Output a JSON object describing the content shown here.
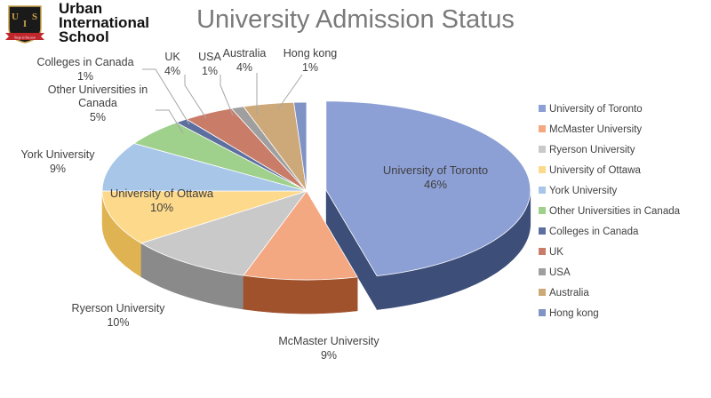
{
  "logo": {
    "mark_letters": [
      "U",
      "I",
      "S"
    ],
    "tagline": "Steps to Success",
    "lines": [
      "Urban",
      "International",
      "School"
    ],
    "colors": {
      "shield": "#1a1a1a",
      "banner": "#c0272d",
      "gold": "#c9a14a"
    }
  },
  "chart_data": {
    "type": "pie",
    "title": "University Admission Status",
    "exploded": "University of Toronto",
    "legend_position": "right",
    "slices": [
      {
        "name": "University of Toronto",
        "value": 46,
        "label": "46%",
        "color": "#8da0d6",
        "dark": "#3d4e78"
      },
      {
        "name": "McMaster University",
        "value": 9,
        "label": "9%",
        "color": "#f4a882",
        "dark": "#a0522d"
      },
      {
        "name": "Ryerson University",
        "value": 10,
        "label": "10%",
        "color": "#c9c9c9",
        "dark": "#8a8a8a"
      },
      {
        "name": "University of Ottawa",
        "value": 10,
        "label": "10%",
        "color": "#fdd98c",
        "dark": "#e0b352"
      },
      {
        "name": "York University",
        "value": 9,
        "label": "9%",
        "color": "#a8c6e8",
        "dark": "#6f92bd"
      },
      {
        "name": "Other Universities in Canada",
        "value": 5,
        "label": "5%",
        "color": "#9fd08c",
        "dark": "#5c9a49"
      },
      {
        "name": "Colleges in Canada",
        "value": 1,
        "label": "1%",
        "color": "#5c6f9e",
        "dark": "#2f3c5c"
      },
      {
        "name": "UK",
        "value": 4,
        "label": "4%",
        "color": "#c97c68",
        "dark": "#8a4a3a"
      },
      {
        "name": "USA",
        "value": 1,
        "label": "1%",
        "color": "#9f9f9f",
        "dark": "#666666"
      },
      {
        "name": "Australia",
        "value": 4,
        "label": "4%",
        "color": "#cda879",
        "dark": "#8f7048"
      },
      {
        "name": "Hong kong",
        "value": 1,
        "label": "1%",
        "color": "#7f93c4",
        "dark": "#4a5a85"
      }
    ],
    "legend": [
      "University of Toronto",
      "McMaster University",
      "Ryerson University",
      "University of Ottawa",
      "York University",
      "Other Universities in Canada",
      "Colleges in Canada",
      "UK",
      "USA",
      "Australia",
      "Hong kong"
    ]
  }
}
